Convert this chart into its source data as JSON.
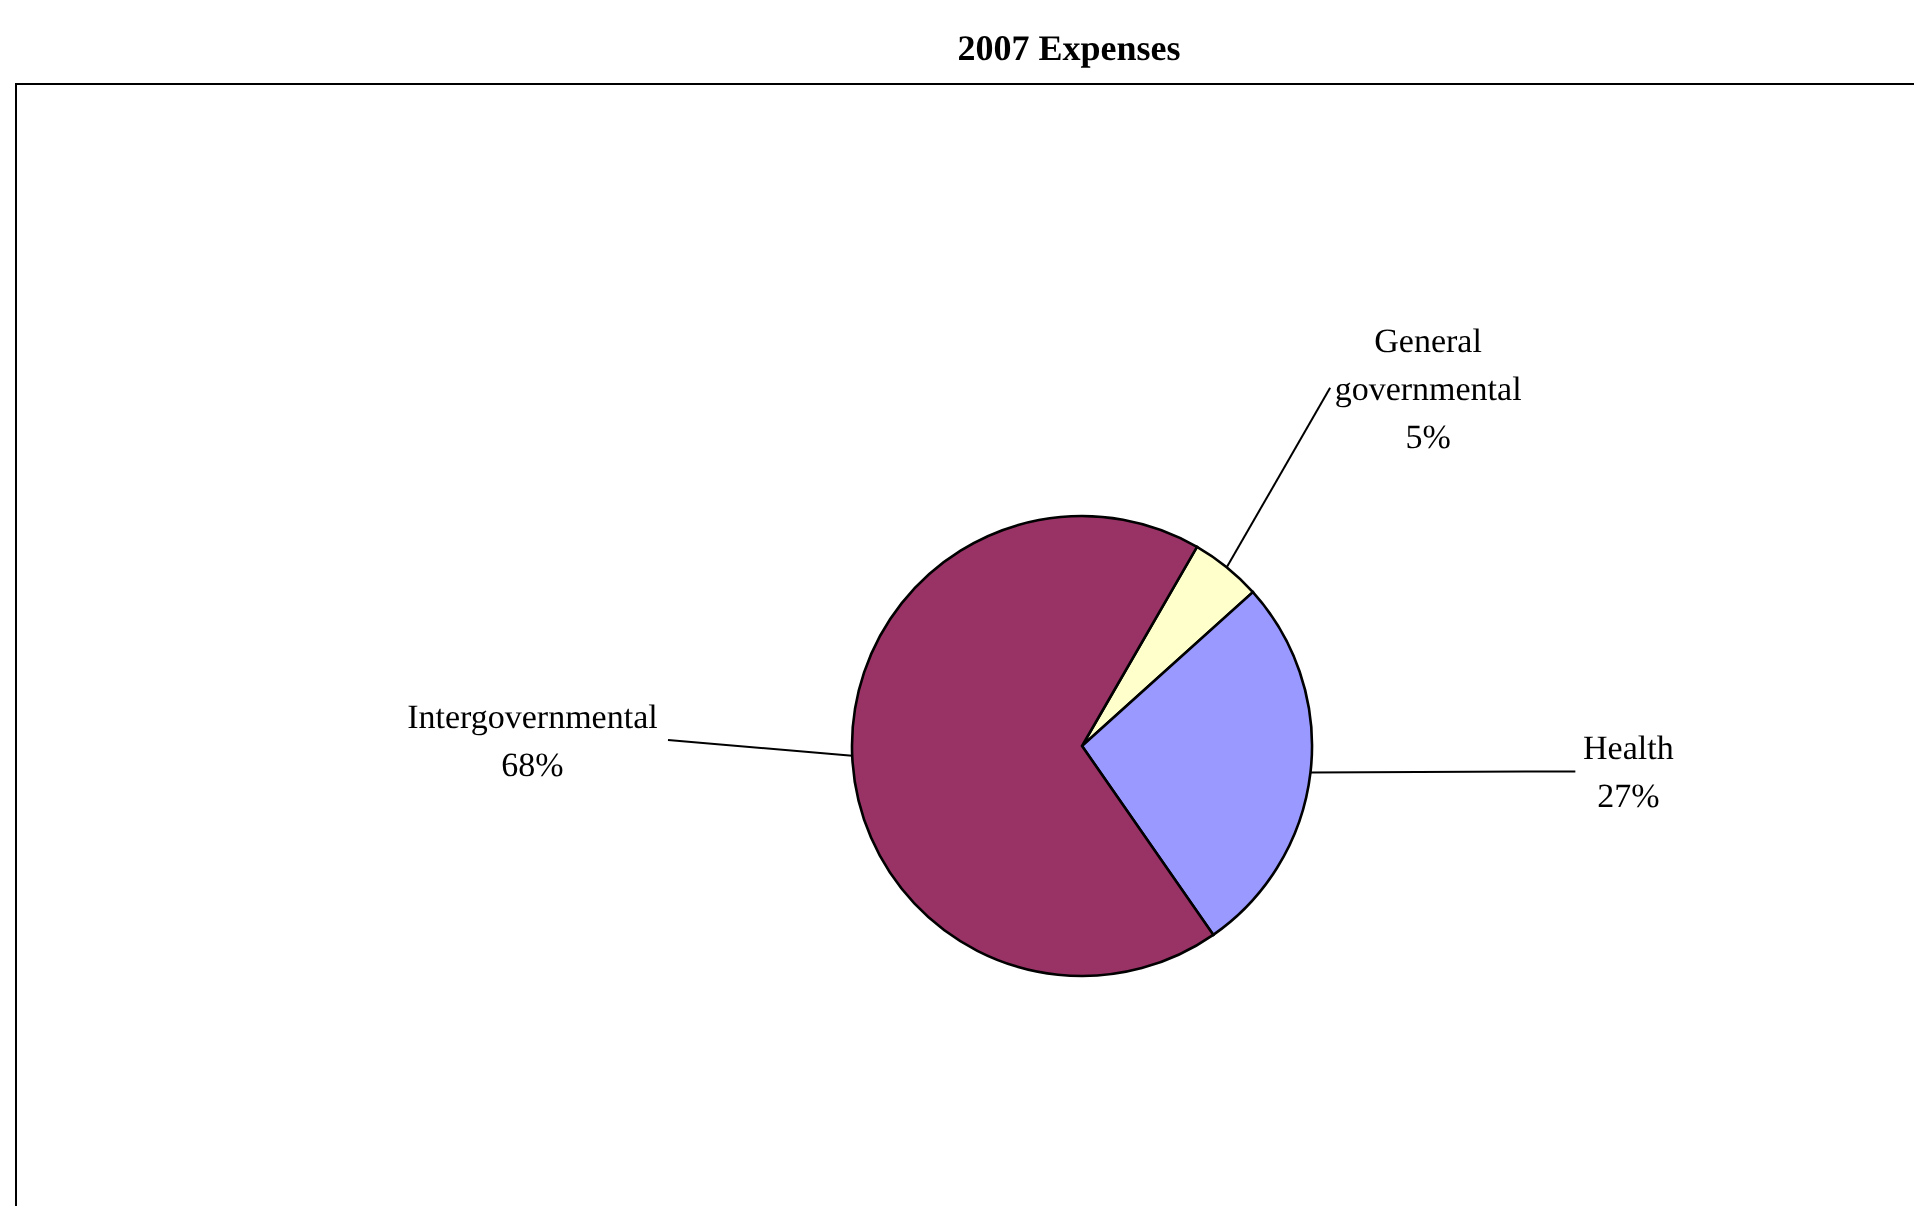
{
  "chart_data": {
    "type": "pie",
    "title": "2007 Expenses",
    "categories": [
      "General governmental",
      "Health",
      "Intergovernmental"
    ],
    "values": [
      5,
      27,
      68
    ],
    "colors": [
      "#ffffcc",
      "#9999ff",
      "#993366"
    ],
    "value_labels": [
      "5%",
      "27%",
      "68%"
    ]
  }
}
